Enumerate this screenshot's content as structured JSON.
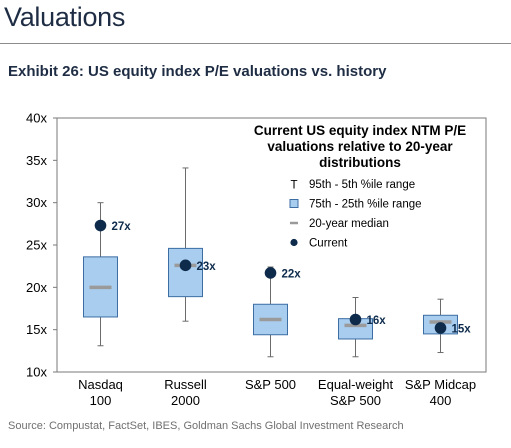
{
  "header": {
    "section_title": "Valuations",
    "exhibit_title": "Exhibit 26: US equity index P/E valuations vs. history"
  },
  "chart_data": {
    "type": "boxplot",
    "title": "Current US equity index NTM P/E valuations relative to 20-year distributions",
    "title_lines": [
      "Current US equity index NTM P/E",
      "valuations relative to 20-year",
      "distributions"
    ],
    "ylim": [
      10,
      40
    ],
    "y_ticks": [
      10,
      15,
      20,
      25,
      30,
      35,
      40
    ],
    "y_tick_labels": [
      "10x",
      "15x",
      "20x",
      "25x",
      "30x",
      "35x",
      "40x"
    ],
    "grid": false,
    "legend_position": "top-right",
    "legend": [
      {
        "key": "whisker",
        "symbol": "T",
        "label": "95th - 5th %ile range"
      },
      {
        "key": "box",
        "label": "75th - 25th %ile range"
      },
      {
        "key": "median",
        "label": "20-year median"
      },
      {
        "key": "current",
        "label": "Current"
      }
    ],
    "categories": [
      {
        "lines": [
          "Nasdaq",
          "100"
        ]
      },
      {
        "lines": [
          "Russell",
          "2000"
        ]
      },
      {
        "lines": [
          "S&P 500"
        ]
      },
      {
        "lines": [
          "Equal-weight",
          "S&P 500"
        ]
      },
      {
        "lines": [
          "S&P Midcap",
          "400"
        ]
      }
    ],
    "series": [
      {
        "p5": 13.1,
        "p25": 16.5,
        "median": 20.0,
        "p75": 23.6,
        "p95": 30.0,
        "current": 27.3,
        "current_label": "27x"
      },
      {
        "p5": 16.0,
        "p25": 18.9,
        "median": 22.6,
        "p75": 24.6,
        "p95": 34.1,
        "current": 22.6,
        "current_label": "23x"
      },
      {
        "p5": 11.8,
        "p25": 14.4,
        "median": 16.2,
        "p75": 18.0,
        "p95": 22.4,
        "current": 21.7,
        "current_label": "22x"
      },
      {
        "p5": 11.8,
        "p25": 13.9,
        "median": 15.5,
        "p75": 16.3,
        "p95": 18.8,
        "current": 16.2,
        "current_label": "16x"
      },
      {
        "p5": 12.3,
        "p25": 14.5,
        "median": 15.9,
        "p75": 16.7,
        "p95": 18.6,
        "current": 15.2,
        "current_label": "15x"
      }
    ],
    "colors": {
      "box_fill": "#a9cdef",
      "box_stroke": "#3c6ea3",
      "median": "#9a9a9a",
      "current": "#0e2b4c",
      "whisker": "#6b6b6b",
      "frame": "#7a7a7a",
      "title": "#000000"
    }
  },
  "footer": {
    "source": "Source: Compustat, FactSet, IBES, Goldman Sachs Global Investment Research"
  }
}
